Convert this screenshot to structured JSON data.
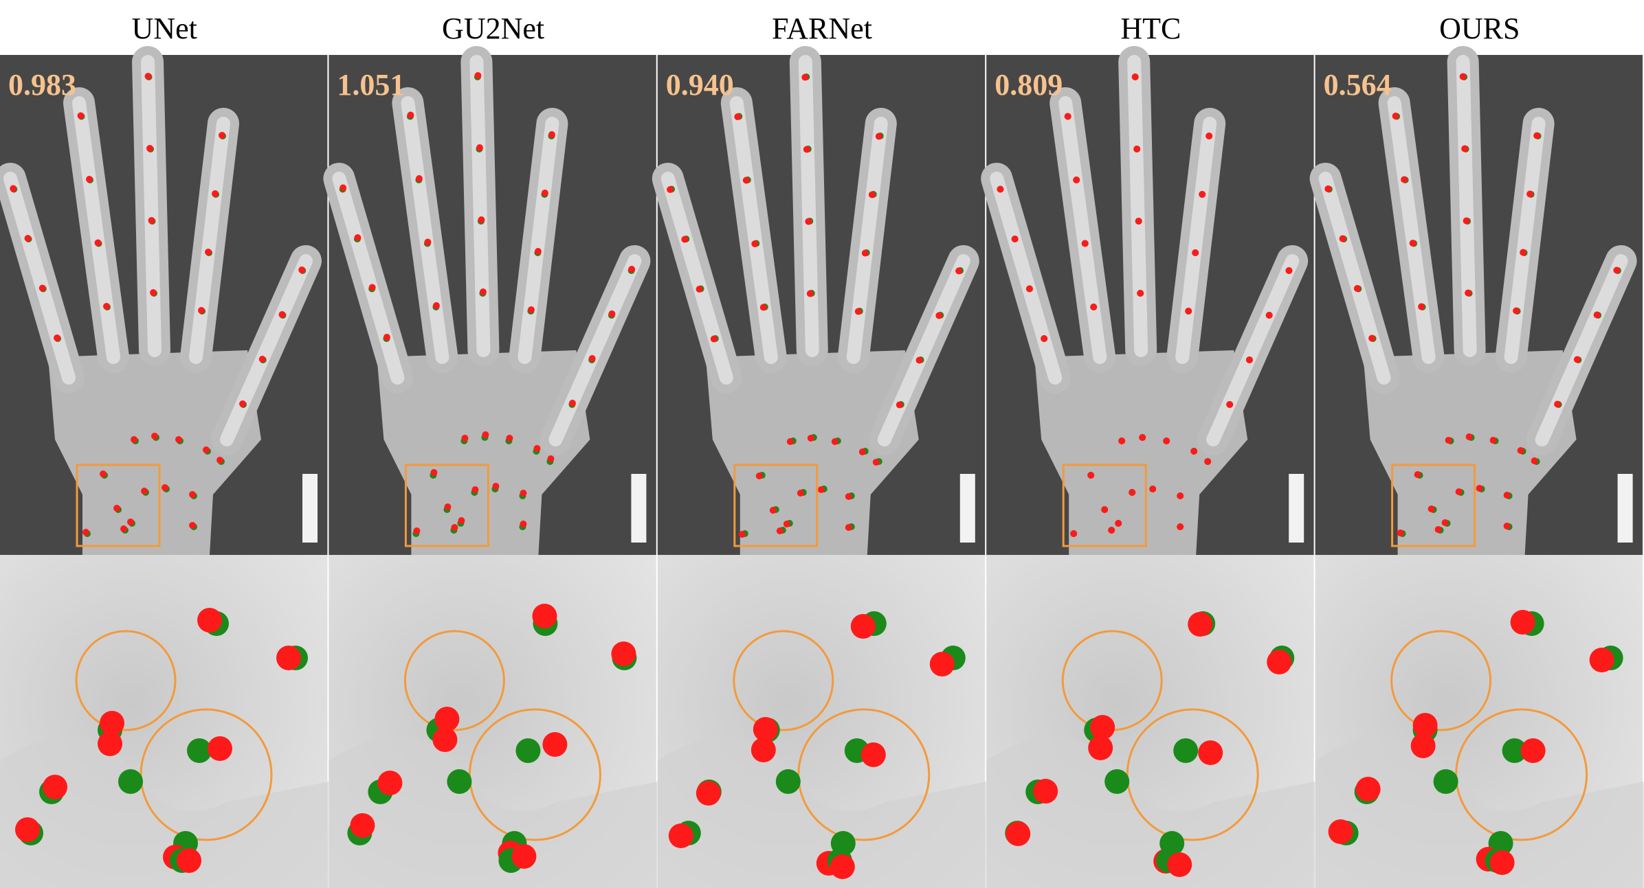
{
  "panels": [
    {
      "method": "UNet",
      "score": "0.983"
    },
    {
      "method": "GU2Net",
      "score": "1.051"
    },
    {
      "method": "FARNet",
      "score": "0.940"
    },
    {
      "method": "HTC",
      "score": "0.809"
    },
    {
      "method": "OURS",
      "score": "0.564"
    }
  ]
}
